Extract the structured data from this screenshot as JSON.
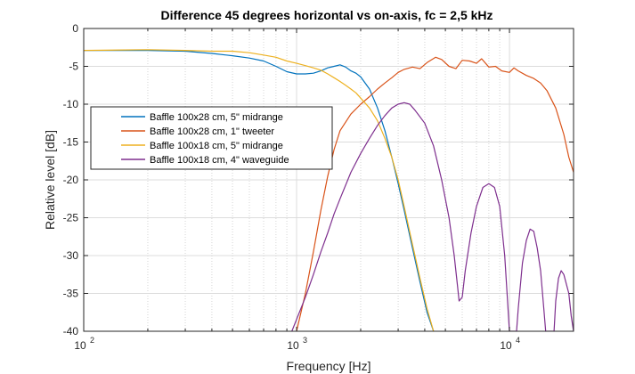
{
  "chart_data": {
    "type": "line",
    "title": "Difference 45 degrees horizontal vs on-axis, fc = 2,5 kHz",
    "xlabel": "Frequency [Hz]",
    "ylabel": "Relative level [dB]",
    "xscale": "log",
    "xlim": [
      100,
      20000
    ],
    "ylim": [
      -40,
      0
    ],
    "grid": true,
    "legend_position": "upper-left",
    "x_ticks": [
      {
        "value": 100,
        "base": "10",
        "exp": "2"
      },
      {
        "value": 1000,
        "base": "10",
        "exp": "3"
      },
      {
        "value": 10000,
        "base": "10",
        "exp": "4"
      }
    ],
    "y_ticks": [
      0,
      -5,
      -10,
      -15,
      -20,
      -25,
      -30,
      -35,
      -40
    ],
    "series": [
      {
        "name": "Baffle 100x28 cm, 5\" midrange",
        "color": "#0072BD",
        "points": [
          [
            100,
            -2.9
          ],
          [
            200,
            -2.9
          ],
          [
            300,
            -3.0
          ],
          [
            400,
            -3.3
          ],
          [
            500,
            -3.6
          ],
          [
            600,
            -3.9
          ],
          [
            700,
            -4.3
          ],
          [
            800,
            -5.0
          ],
          [
            900,
            -5.7
          ],
          [
            1000,
            -6.0
          ],
          [
            1100,
            -6.0
          ],
          [
            1200,
            -5.9
          ],
          [
            1300,
            -5.6
          ],
          [
            1400,
            -5.2
          ],
          [
            1500,
            -5.0
          ],
          [
            1600,
            -4.8
          ],
          [
            1700,
            -5.1
          ],
          [
            1800,
            -5.6
          ],
          [
            1900,
            -5.9
          ],
          [
            2000,
            -6.4
          ],
          [
            2200,
            -8.0
          ],
          [
            2400,
            -10.5
          ],
          [
            2600,
            -13.5
          ],
          [
            2800,
            -17.0
          ],
          [
            3000,
            -20.5
          ],
          [
            3200,
            -24.0
          ],
          [
            3500,
            -29.0
          ],
          [
            3800,
            -33.5
          ],
          [
            4100,
            -37.5
          ],
          [
            4400,
            -40.0
          ]
        ]
      },
      {
        "name": "Baffle 100x28 cm, 1\" tweeter",
        "color": "#D95319",
        "points": [
          [
            1000,
            -40.0
          ],
          [
            1100,
            -35.0
          ],
          [
            1200,
            -29.5
          ],
          [
            1300,
            -24.0
          ],
          [
            1400,
            -19.5
          ],
          [
            1500,
            -16.0
          ],
          [
            1600,
            -13.5
          ],
          [
            1800,
            -11.3
          ],
          [
            2000,
            -10.0
          ],
          [
            2200,
            -9.0
          ],
          [
            2400,
            -8.0
          ],
          [
            2600,
            -7.2
          ],
          [
            2800,
            -6.5
          ],
          [
            3000,
            -5.8
          ],
          [
            3200,
            -5.4
          ],
          [
            3500,
            -5.1
          ],
          [
            3800,
            -5.3
          ],
          [
            4100,
            -4.5
          ],
          [
            4500,
            -3.8
          ],
          [
            4800,
            -4.1
          ],
          [
            5200,
            -5.0
          ],
          [
            5600,
            -5.3
          ],
          [
            6000,
            -4.2
          ],
          [
            6500,
            -4.3
          ],
          [
            7000,
            -4.6
          ],
          [
            7400,
            -4.0
          ],
          [
            8000,
            -5.1
          ],
          [
            8600,
            -5.0
          ],
          [
            9200,
            -5.6
          ],
          [
            10000,
            -5.8
          ],
          [
            10500,
            -5.2
          ],
          [
            11000,
            -5.6
          ],
          [
            12000,
            -6.2
          ],
          [
            13000,
            -6.6
          ],
          [
            14000,
            -7.2
          ],
          [
            15000,
            -8.2
          ],
          [
            16500,
            -10.5
          ],
          [
            18000,
            -14.0
          ],
          [
            19000,
            -17.0
          ],
          [
            20000,
            -19.0
          ]
        ]
      },
      {
        "name": "Baffle 100x18 cm, 5\" midrange",
        "color": "#EDB120",
        "points": [
          [
            100,
            -2.9
          ],
          [
            200,
            -2.8
          ],
          [
            300,
            -2.9
          ],
          [
            400,
            -3.0
          ],
          [
            500,
            -3.0
          ],
          [
            600,
            -3.2
          ],
          [
            700,
            -3.5
          ],
          [
            800,
            -3.8
          ],
          [
            900,
            -4.3
          ],
          [
            1000,
            -4.6
          ],
          [
            1100,
            -4.9
          ],
          [
            1200,
            -5.2
          ],
          [
            1300,
            -5.5
          ],
          [
            1400,
            -6.0
          ],
          [
            1500,
            -6.5
          ],
          [
            1600,
            -7.0
          ],
          [
            1700,
            -7.5
          ],
          [
            1800,
            -8.0
          ],
          [
            1900,
            -8.5
          ],
          [
            2000,
            -9.2
          ],
          [
            2200,
            -10.5
          ],
          [
            2400,
            -12.2
          ],
          [
            2600,
            -14.5
          ],
          [
            2800,
            -17.0
          ],
          [
            3000,
            -20.0
          ],
          [
            3200,
            -23.5
          ],
          [
            3500,
            -28.5
          ],
          [
            3800,
            -33.0
          ],
          [
            4100,
            -37.0
          ],
          [
            4400,
            -40.0
          ]
        ]
      },
      {
        "name": "Baffle 100x18 cm, 4\" waveguide",
        "color": "#7E2F8E",
        "points": [
          [
            950,
            -40.0
          ],
          [
            1100,
            -35.5
          ],
          [
            1200,
            -32.5
          ],
          [
            1300,
            -29.5
          ],
          [
            1400,
            -27.0
          ],
          [
            1500,
            -24.5
          ],
          [
            1600,
            -22.5
          ],
          [
            1800,
            -19.0
          ],
          [
            2000,
            -16.5
          ],
          [
            2200,
            -14.5
          ],
          [
            2400,
            -12.8
          ],
          [
            2600,
            -11.5
          ],
          [
            2800,
            -10.5
          ],
          [
            3000,
            -10.0
          ],
          [
            3200,
            -9.8
          ],
          [
            3400,
            -10.0
          ],
          [
            3600,
            -10.8
          ],
          [
            4000,
            -12.5
          ],
          [
            4400,
            -15.5
          ],
          [
            4800,
            -20.0
          ],
          [
            5200,
            -25.0
          ],
          [
            5500,
            -30.0
          ],
          [
            5700,
            -34.0
          ],
          [
            5800,
            -36.0
          ],
          [
            6000,
            -35.5
          ],
          [
            6200,
            -32.0
          ],
          [
            6600,
            -27.0
          ],
          [
            7000,
            -23.5
          ],
          [
            7500,
            -21.0
          ],
          [
            8000,
            -20.5
          ],
          [
            8500,
            -21.0
          ],
          [
            9000,
            -23.5
          ],
          [
            9500,
            -30.0
          ],
          [
            9800,
            -36.0
          ],
          [
            10000,
            -40.0
          ],
          [
            10800,
            -40.0
          ],
          [
            11000,
            -37.0
          ],
          [
            11500,
            -31.0
          ],
          [
            12000,
            -28.0
          ],
          [
            12500,
            -26.5
          ],
          [
            13000,
            -26.8
          ],
          [
            13500,
            -29.0
          ],
          [
            14000,
            -32.0
          ],
          [
            14500,
            -37.0
          ],
          [
            14800,
            -40.0
          ],
          [
            16200,
            -40.0
          ],
          [
            16500,
            -36.0
          ],
          [
            17000,
            -33.0
          ],
          [
            17500,
            -32.0
          ],
          [
            18000,
            -32.5
          ],
          [
            19000,
            -35.0
          ],
          [
            19500,
            -38.0
          ],
          [
            20000,
            -40.0
          ]
        ]
      }
    ]
  }
}
